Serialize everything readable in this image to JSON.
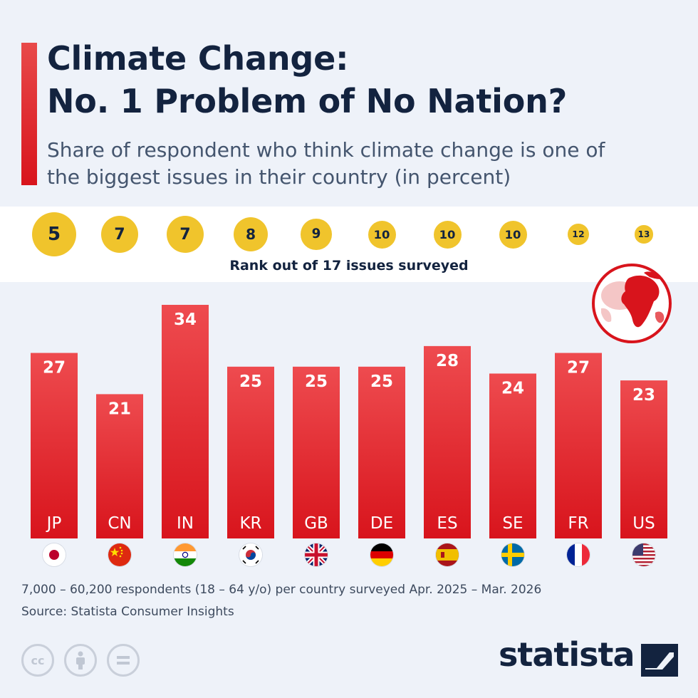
{
  "header": {
    "title": "Climate Change:\nNo. 1 Problem of No Nation?",
    "subtitle": "Share of respondent who think climate change is one of the biggest issues in their country (in percent)"
  },
  "rank_caption": "Rank out of 17 issues surveyed",
  "chart_data": {
    "type": "bar",
    "title": "Climate Change: No. 1 Problem of No Nation?",
    "subtitle": "Share of respondent who think climate change is one of the biggest issues in their country (in percent)",
    "categories": [
      "JP",
      "CN",
      "IN",
      "KR",
      "GB",
      "DE",
      "ES",
      "SE",
      "FR",
      "US"
    ],
    "values": [
      27,
      21,
      34,
      25,
      25,
      25,
      28,
      24,
      27,
      23
    ],
    "ranks": [
      5,
      7,
      7,
      8,
      9,
      10,
      10,
      10,
      12,
      13
    ],
    "rank_label": "Rank out of 17 issues surveyed",
    "ylim": [
      0,
      34
    ],
    "grid": false,
    "bar_color_top": "#ee4b4f",
    "bar_color_bottom": "#d8141c",
    "rank_color": "#f0c42c"
  },
  "footer": {
    "note": "7,000 – 60,200 respondents (18 – 64 y/o) per country surveyed Apr. 2025 – Mar. 2026",
    "source": "Source: Statista Consumer Insights",
    "brand": "statista",
    "license_icons": [
      "cc-icon",
      "attribution-icon",
      "no-derivatives-icon"
    ]
  },
  "colors": {
    "title": "#13233f",
    "background": "#eef2f9",
    "accent": "#d8141c"
  }
}
